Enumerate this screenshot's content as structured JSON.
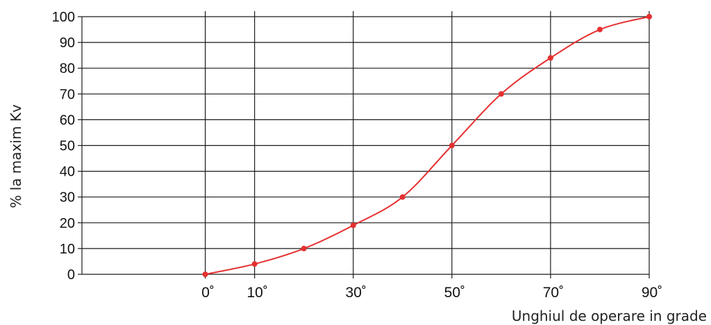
{
  "chart_data": {
    "type": "line",
    "title": "",
    "xlabel": "Unghiul de operare in grade",
    "ylabel": "% la maxim Kv",
    "xlim": [
      -25,
      90
    ],
    "ylim": [
      0,
      100
    ],
    "grid": true,
    "y_ticks": [
      0,
      10,
      20,
      30,
      40,
      50,
      60,
      70,
      80,
      90,
      100
    ],
    "y_tick_labels": [
      "0",
      "10",
      "20",
      "30",
      "40",
      "50",
      "60",
      "70",
      "80",
      "90",
      "100"
    ],
    "x_gridlines": [
      0,
      10,
      30,
      50,
      70,
      90
    ],
    "x_ticks": [
      0,
      10,
      30,
      50,
      70,
      90
    ],
    "x_tick_labels": [
      "0˚",
      "10˚",
      "30˚",
      "50˚",
      "70˚",
      "90˚"
    ],
    "series": [
      {
        "x": [
          0,
          10,
          20,
          30,
          40,
          50,
          60,
          70,
          80,
          90
        ],
        "y": [
          0,
          4,
          10,
          19,
          30,
          50,
          70,
          84,
          95,
          100
        ],
        "color": "#e53030"
      }
    ]
  }
}
